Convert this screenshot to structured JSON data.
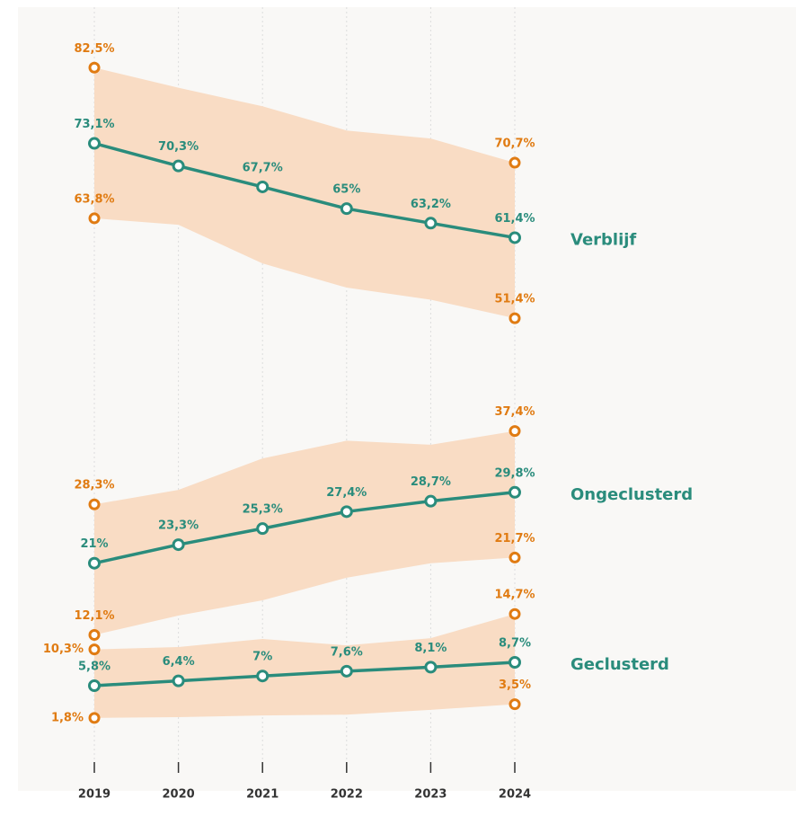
{
  "chart_data": {
    "type": "line",
    "categories": [
      "2019",
      "2020",
      "2021",
      "2022",
      "2023",
      "2024"
    ],
    "ylim": [
      0,
      90
    ],
    "band_color": "#f9dcc4",
    "band_label_color": "#e07b12",
    "series": [
      {
        "name": "Verblijf",
        "color": "#2a8c7c",
        "values": [
          73.1,
          70.3,
          67.7,
          65,
          63.2,
          61.4
        ],
        "value_labels": [
          "73,1%",
          "70,3%",
          "67,7%",
          "65%",
          "63,2%",
          "61,4%"
        ],
        "upper": [
          82.5,
          80.0,
          77.7,
          74.7,
          73.7,
          70.7
        ],
        "upper_labels": [
          "82,5%",
          null,
          null,
          null,
          null,
          "70,7%"
        ],
        "lower": [
          63.8,
          63.0,
          58.2,
          55.2,
          53.7,
          51.4
        ],
        "lower_labels": [
          "63,8%",
          null,
          null,
          null,
          null,
          "51,4%"
        ]
      },
      {
        "name": "Ongeclusterd",
        "color": "#2a8c7c",
        "values": [
          21,
          23.3,
          25.3,
          27.4,
          28.7,
          29.8
        ],
        "value_labels": [
          "21%",
          "23,3%",
          "25,3%",
          "27,4%",
          "28,7%",
          "29,8%"
        ],
        "upper": [
          28.3,
          30.1,
          34.0,
          36.2,
          35.7,
          37.4
        ],
        "upper_labels": [
          "28,3%",
          null,
          null,
          null,
          null,
          "37,4%"
        ],
        "lower": [
          12.1,
          14.5,
          16.4,
          19.2,
          21.0,
          21.7
        ],
        "lower_labels": [
          "12,1%",
          null,
          null,
          null,
          null,
          "21,7%"
        ]
      },
      {
        "name": "Geclusterd",
        "color": "#2a8c7c",
        "values": [
          5.8,
          6.4,
          7,
          7.6,
          8.1,
          8.7
        ],
        "value_labels": [
          "5,8%",
          "6,4%",
          "7%",
          "7,6%",
          "8,1%",
          "8,7%"
        ],
        "upper": [
          10.3,
          10.6,
          11.6,
          10.8,
          11.7,
          14.7
        ],
        "upper_labels": [
          "10,3%",
          null,
          null,
          null,
          null,
          "14,7%"
        ],
        "lower": [
          1.8,
          1.9,
          2.1,
          2.2,
          2.8,
          3.5
        ],
        "lower_labels": [
          "1,8%",
          null,
          null,
          null,
          null,
          "3,5%"
        ]
      }
    ]
  }
}
